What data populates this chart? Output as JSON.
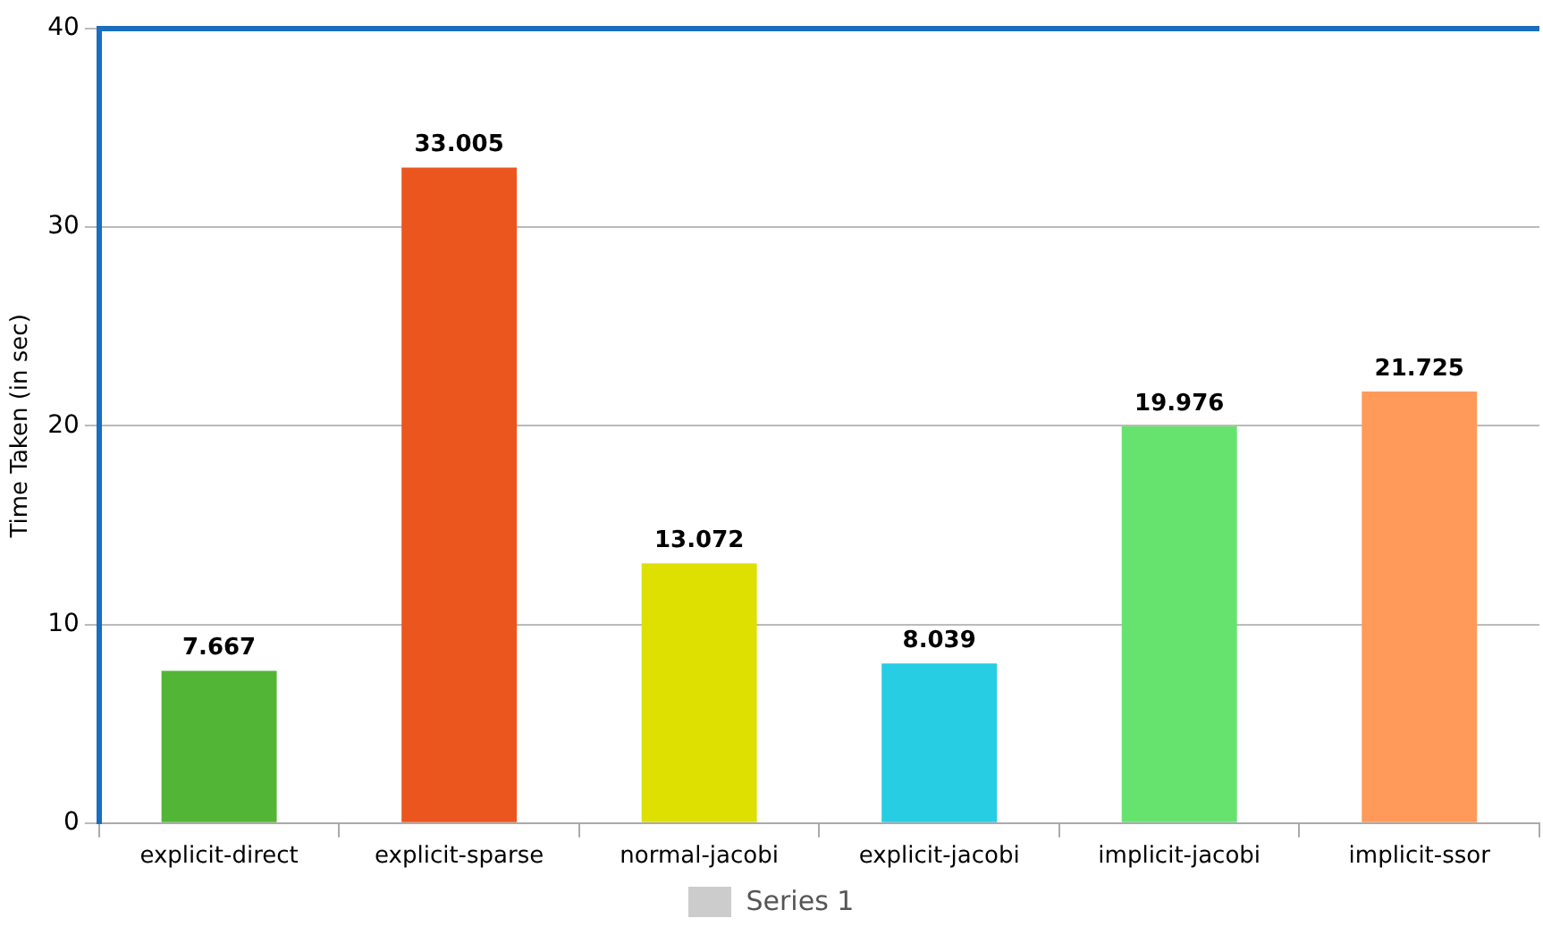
{
  "chart_data": {
    "type": "bar",
    "ylabel": "Time Taken (in sec)",
    "categories": [
      "explicit-direct",
      "explicit-sparse",
      "normal-jacobi",
      "explicit-jacobi",
      "implicit-jacobi",
      "implicit-ssor"
    ],
    "series": [
      {
        "name": "Series 1",
        "color": "#cccccc",
        "colors": [
          "#52b535",
          "#eb561e",
          "#dde000",
          "#26cde3",
          "#66e36f",
          "#ff9a5a"
        ],
        "values": [
          7.667,
          33.005,
          13.072,
          8.039,
          19.976,
          21.725
        ]
      }
    ],
    "ylim": [
      0,
      40
    ],
    "yticks": [
      0,
      10,
      20,
      30,
      40
    ],
    "grid": "y",
    "legend": "bottom",
    "data_labels": true
  }
}
